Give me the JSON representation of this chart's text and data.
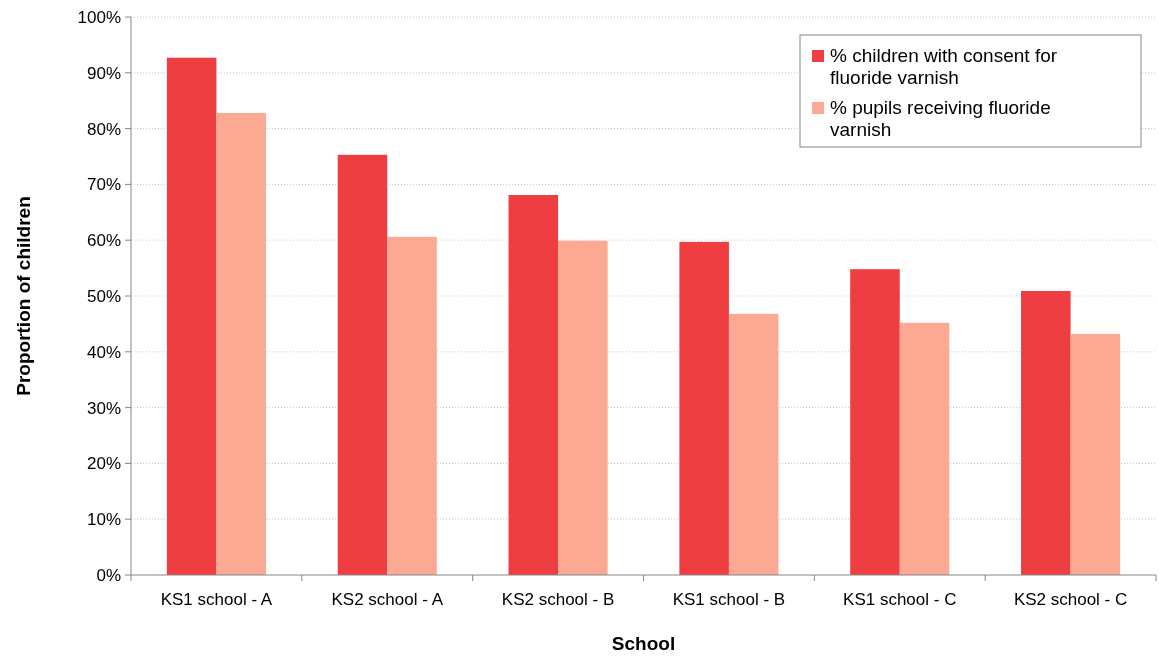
{
  "chart_data": {
    "type": "bar",
    "xlabel": "School",
    "ylabel": "Proportion of children",
    "categories": [
      "KS1 school - A",
      "KS2 school - A",
      "KS2 school - B",
      "KS1 school - B",
      "KS1 school - C",
      "KS2 school - C"
    ],
    "series": [
      {
        "name": "% children with consent for fluoride varnish",
        "color": "#ee3e42",
        "values": [
          92.7,
          75.3,
          68.1,
          59.7,
          54.8,
          50.9
        ]
      },
      {
        "name": "% pupils receiving fluoride varnish",
        "color": "#fca994",
        "values": [
          82.8,
          60.6,
          59.9,
          46.8,
          45.2,
          43.2
        ]
      }
    ],
    "ylim": [
      0,
      100
    ],
    "yticks": [
      {
        "value": 0,
        "label": "0%"
      },
      {
        "value": 10,
        "label": "10%"
      },
      {
        "value": 20,
        "label": "20%"
      },
      {
        "value": 30,
        "label": "30%"
      },
      {
        "value": 40,
        "label": "40%"
      },
      {
        "value": 50,
        "label": "50%"
      },
      {
        "value": 60,
        "label": "60%"
      },
      {
        "value": 70,
        "label": "70%"
      },
      {
        "value": 80,
        "label": "80%"
      },
      {
        "value": 90,
        "label": "90%"
      },
      {
        "value": 100,
        "label": "100%"
      }
    ],
    "grid": "y",
    "legend": "top right"
  }
}
